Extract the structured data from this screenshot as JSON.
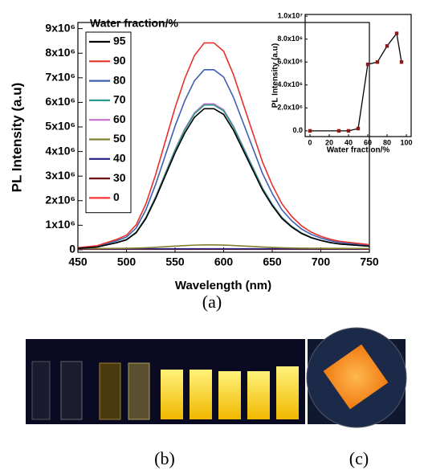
{
  "chart_data": [
    {
      "type": "line",
      "x_label": "Wavelength (nm)",
      "y_label": "PL Intensity (a.u)",
      "legend": "upper-left",
      "legend_title": "Water fraction/%",
      "x": [
        450,
        460,
        470,
        480,
        490,
        500,
        510,
        520,
        530,
        540,
        550,
        560,
        570,
        580,
        590,
        600,
        610,
        620,
        630,
        640,
        650,
        660,
        670,
        680,
        690,
        700,
        710,
        720,
        730,
        740,
        750
      ],
      "xlim": [
        450,
        750
      ],
      "xticks": [
        450,
        500,
        550,
        600,
        650,
        700,
        750
      ],
      "ylim": [
        -100000,
        9250000
      ],
      "yticks": [
        0,
        {
          "value": 1000000,
          "label": "1x10⁶"
        },
        {
          "value": 2000000,
          "label": "2x10⁶"
        },
        {
          "value": 3000000,
          "label": "3x10⁶"
        },
        {
          "value": 4000000,
          "label": "4x10⁶"
        },
        {
          "value": 5000000,
          "label": "5x10⁶"
        },
        {
          "value": 6000000,
          "label": "6x10⁶"
        },
        {
          "value": 7000000,
          "label": "7x10⁶"
        },
        {
          "value": 8000000,
          "label": "8x10⁶"
        },
        {
          "value": 9000000,
          "label": "9x10⁶"
        }
      ],
      "series": [
        {
          "name": "95",
          "color": "#000000",
          "values": [
            58000,
            87000,
            116000,
            203000,
            290000,
            406000,
            696000,
            1276000,
            2088000,
            3016000,
            3944000,
            4756000,
            5394000,
            5742000,
            5742000,
            5510000,
            4872000,
            4060000,
            3248000,
            2436000,
            1798000,
            1276000,
            928000,
            667000,
            493000,
            377000,
            290000,
            232000,
            203000,
            174000,
            145000
          ]
        },
        {
          "name": "90",
          "color": "#e8302a",
          "values": [
            85000,
            128000,
            170000,
            298000,
            425000,
            595000,
            1020000,
            1870000,
            3060000,
            4420000,
            5780000,
            6970000,
            7910000,
            8420000,
            8420000,
            8080000,
            7140000,
            5950000,
            4760000,
            3570000,
            2640000,
            1870000,
            1360000,
            980000,
            720000,
            550000,
            425000,
            340000,
            300000,
            255000,
            210000
          ]
        },
        {
          "name": "80",
          "color": "#3f5fb0",
          "values": [
            74000,
            111000,
            148000,
            259000,
            370000,
            518000,
            888000,
            1628000,
            2664000,
            3848000,
            5032000,
            6068000,
            6882000,
            7326000,
            7326000,
            7030000,
            6216000,
            5180000,
            4144000,
            3108000,
            2294000,
            1628000,
            1184000,
            851000,
            629000,
            481000,
            370000,
            296000,
            259000,
            222000,
            185000
          ]
        },
        {
          "name": "70",
          "color": "#2a9a8a",
          "values": [
            60000,
            89000,
            119000,
            208000,
            298000,
            417000,
            714000,
            1309000,
            2142000,
            3094000,
            4046000,
            4879000,
            5534000,
            5891000,
            5891000,
            5653000,
            4998000,
            4165000,
            3332000,
            2499000,
            1845000,
            1309000,
            952000,
            684000,
            506000,
            387000,
            298000,
            238000,
            208000,
            179000,
            149000
          ]
        },
        {
          "name": "60",
          "color": "#c070c8",
          "values": [
            60000,
            90000,
            120000,
            210000,
            300000,
            420000,
            720000,
            1320000,
            2160000,
            3120000,
            4080000,
            4920000,
            5580000,
            5940000,
            5940000,
            5700000,
            5040000,
            4200000,
            3360000,
            2520000,
            1860000,
            1320000,
            960000,
            690000,
            510000,
            390000,
            300000,
            240000,
            210000,
            180000,
            150000
          ]
        },
        {
          "name": "50",
          "color": "#7f7f30",
          "values": [
            52000,
            52000,
            53000,
            55000,
            58000,
            61000,
            68000,
            83000,
            104000,
            128000,
            152000,
            173000,
            190000,
            199000,
            199000,
            193000,
            176000,
            155000,
            134000,
            113000,
            97000,
            83000,
            74000,
            67000,
            63000,
            60000,
            58000,
            56000,
            55000,
            55000,
            54000
          ]
        },
        {
          "name": "40",
          "color": "#1f1f80",
          "values": [
            40000,
            40000,
            40000,
            40000,
            40000,
            40000,
            40000,
            40000,
            40000,
            40000,
            40000,
            40000,
            40000,
            40000,
            40000,
            40000,
            40000,
            40000,
            40000,
            40000,
            40000,
            40000,
            40000,
            40000,
            40000,
            40000,
            40000,
            40000,
            40000,
            40000,
            40000
          ]
        },
        {
          "name": "30",
          "color": "#6e1212",
          "values": [
            30000,
            30000,
            30000,
            30000,
            30000,
            30000,
            30000,
            30000,
            30000,
            30000,
            30000,
            30000,
            30000,
            30000,
            30000,
            30000,
            30000,
            30000,
            30000,
            30000,
            30000,
            30000,
            30000,
            30000,
            30000,
            30000,
            30000,
            30000,
            30000,
            30000,
            30000
          ]
        },
        {
          "name": "0",
          "color": "#ff3535",
          "values": [
            20000,
            20000,
            20000,
            20000,
            20000,
            20000,
            20000,
            20000,
            20000,
            20000,
            20000,
            20000,
            20000,
            20000,
            20000,
            20000,
            20000,
            20000,
            20000,
            20000,
            20000,
            20000,
            20000,
            20000,
            20000,
            20000,
            20000,
            20000,
            20000,
            20000,
            20000
          ]
        }
      ]
    },
    {
      "type": "line",
      "x_label": "Water fraction/%",
      "y_label": "PL Intensity (a.u)",
      "x": [
        0,
        30,
        40,
        50,
        60,
        70,
        80,
        90,
        95
      ],
      "xlim": [
        -5,
        105
      ],
      "xticks": [
        0,
        20,
        40,
        60,
        80,
        100
      ],
      "ylim": [
        -500000,
        10150000
      ],
      "yticks": [
        {
          "value": 0,
          "label": "0.0"
        },
        {
          "value": 2000000,
          "label": "2.0x10⁶"
        },
        {
          "value": 4000000,
          "label": "4.0x10⁶"
        },
        {
          "value": 6000000,
          "label": "6.0x10⁶"
        },
        {
          "value": 8000000,
          "label": "8.0x10⁶"
        },
        {
          "value": 10000000,
          "label": "1.0x10⁷"
        }
      ],
      "series": [
        {
          "color": "#000000",
          "marker_color": "#8b1a1a",
          "values": [
            0,
            0,
            0,
            200000,
            5800000,
            6000000,
            7400000,
            8500000,
            6000000
          ]
        }
      ]
    }
  ],
  "captions": [
    "(a)",
    "(b)",
    "(c)"
  ]
}
